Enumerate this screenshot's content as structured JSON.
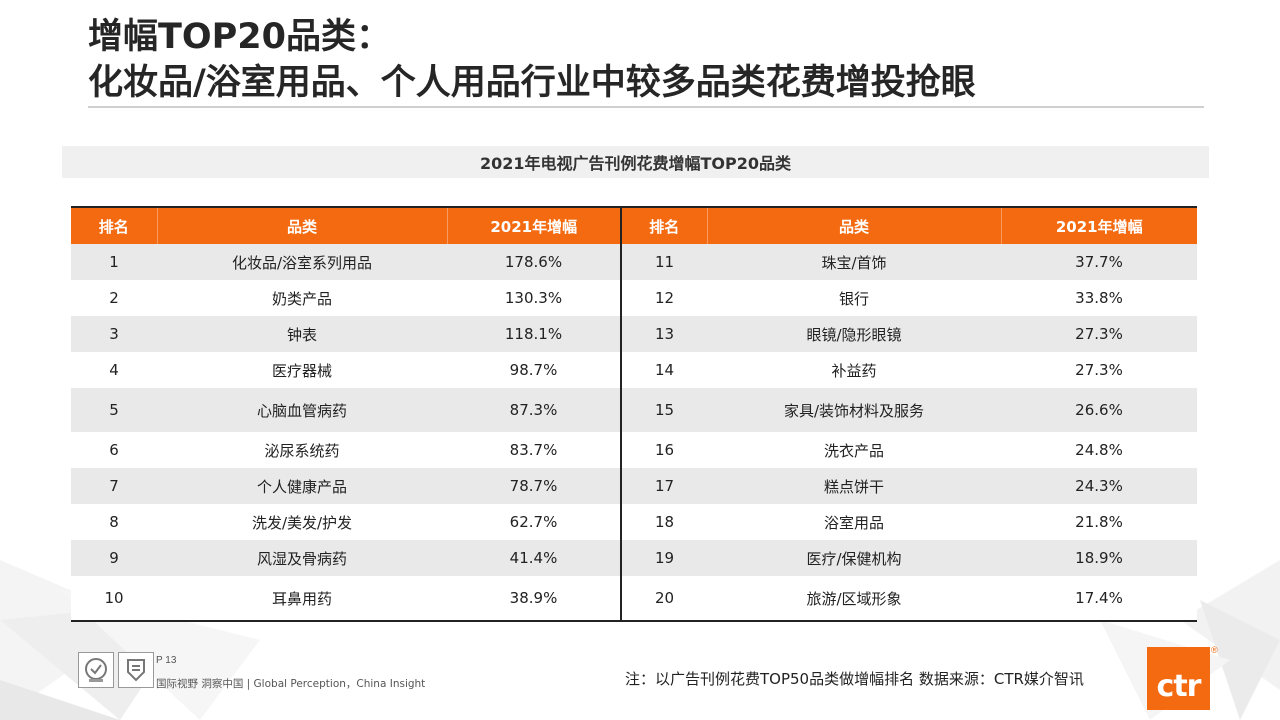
{
  "title": {
    "line1": "增幅TOP20品类：",
    "line2": "化妆品/浴室用品、个人用品行业中较多品类花费增投抢眼"
  },
  "subtitle": "2021年电视广告刊例花费增幅TOP20品类",
  "table": {
    "headers": {
      "rank": "排名",
      "category": "品类",
      "growth": "2021年增幅"
    },
    "left": [
      {
        "rank": "1",
        "category": "化妆品/浴室系列用品",
        "growth": "178.6%"
      },
      {
        "rank": "2",
        "category": "奶类产品",
        "growth": "130.3%"
      },
      {
        "rank": "3",
        "category": "钟表",
        "growth": "118.1%"
      },
      {
        "rank": "4",
        "category": "医疗器械",
        "growth": "98.7%"
      },
      {
        "rank": "5",
        "category": "心脑血管病药",
        "growth": "87.3%"
      },
      {
        "rank": "6",
        "category": "泌尿系统药",
        "growth": "83.7%"
      },
      {
        "rank": "7",
        "category": "个人健康产品",
        "growth": "78.7%"
      },
      {
        "rank": "8",
        "category": "洗发/美发/护发",
        "growth": "62.7%"
      },
      {
        "rank": "9",
        "category": "风湿及骨病药",
        "growth": "41.4%"
      },
      {
        "rank": "10",
        "category": "耳鼻用药",
        "growth": "38.9%"
      }
    ],
    "right": [
      {
        "rank": "11",
        "category": "珠宝/首饰",
        "growth": "37.7%"
      },
      {
        "rank": "12",
        "category": "银行",
        "growth": "33.8%"
      },
      {
        "rank": "13",
        "category": "眼镜/隐形眼镜",
        "growth": "27.3%"
      },
      {
        "rank": "14",
        "category": "补益药",
        "growth": "27.3%"
      },
      {
        "rank": "15",
        "category": "家具/装饰材料及服务",
        "growth": "26.6%"
      },
      {
        "rank": "16",
        "category": "洗衣产品",
        "growth": "24.8%"
      },
      {
        "rank": "17",
        "category": "糕点饼干",
        "growth": "24.3%"
      },
      {
        "rank": "18",
        "category": "浴室用品",
        "growth": "21.8%"
      },
      {
        "rank": "19",
        "category": "医疗/保健机构",
        "growth": "18.9%"
      },
      {
        "rank": "20",
        "category": "旅游/区域形象",
        "growth": "17.4%"
      }
    ]
  },
  "footer": {
    "page": "P 13",
    "slogan": "国际视野  洞察中国 |  Global Perception，China Insight",
    "note": "注：以广告刊例花费TOP50品类做增幅排名  数据来源：CTR媒介智讯",
    "logo_text": "ctr",
    "logo_reg": "®",
    "cert_icons": [
      "certification-seal-icon",
      "quality-badge-icon"
    ]
  },
  "colors": {
    "accent": "#f36a10",
    "row_shade": "#e9e9e9",
    "subtitle_bg": "#f0f0f0"
  }
}
